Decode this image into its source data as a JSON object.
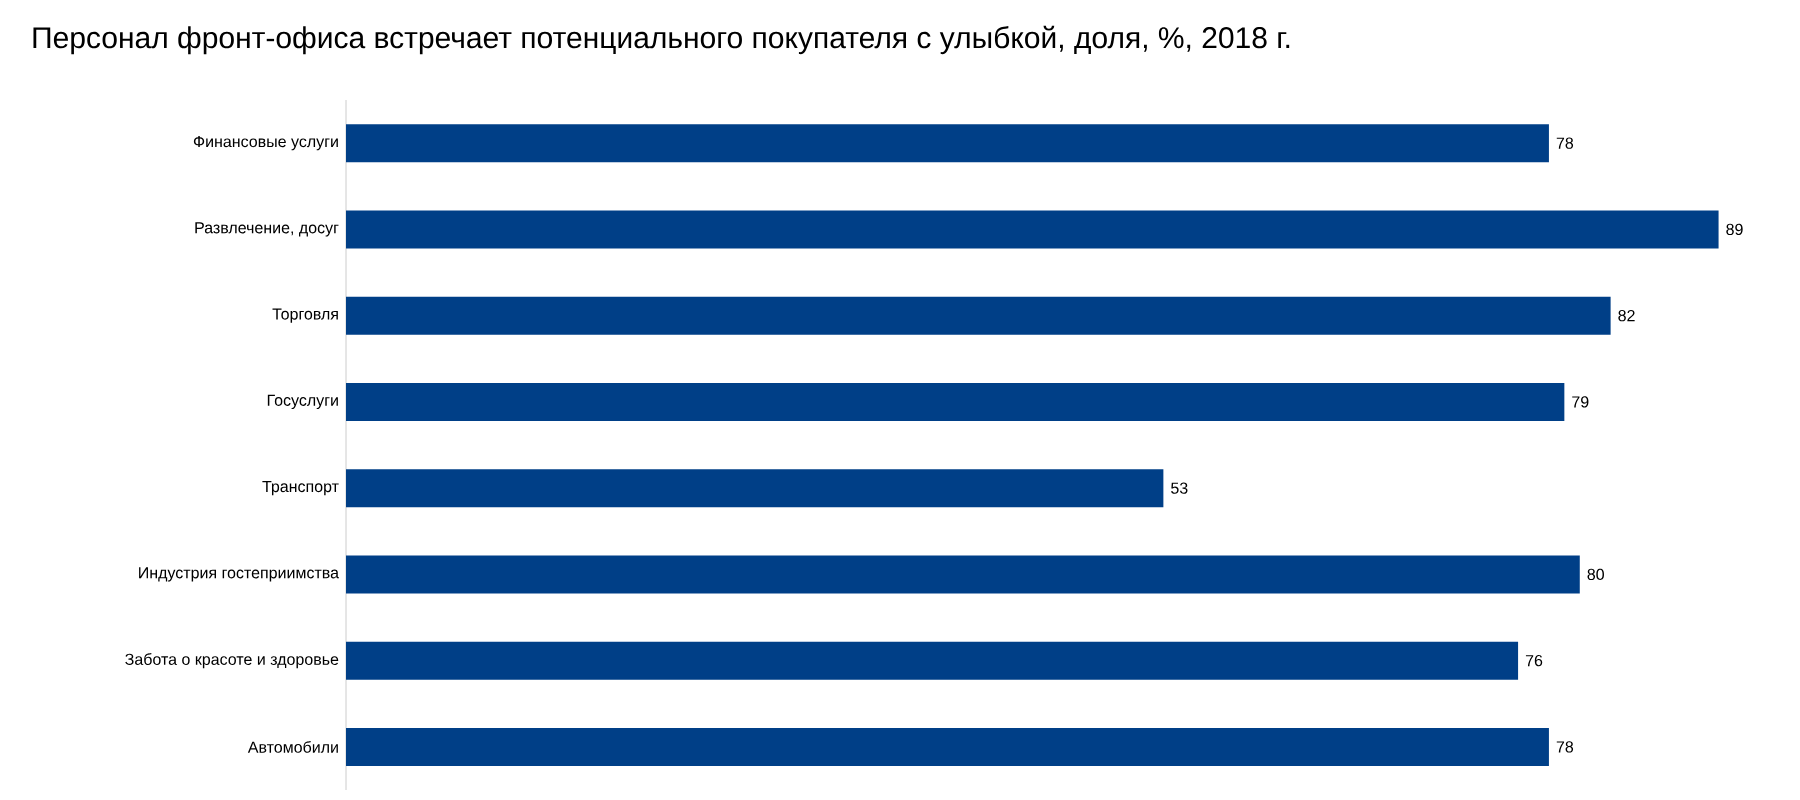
{
  "chart_data": {
    "type": "bar",
    "orientation": "horizontal",
    "title": "Персонал фронт-офиса встречает потенциального покупателя с улыбкой, доля, %, 2018 г.",
    "categories": [
      "Финансовые услуги",
      "Развлечение, досуг",
      "Торговля",
      "Госуслуги",
      "Транспорт",
      "Индустрия гостеприимства",
      "Забота о красоте и здоровье",
      "Автомобили"
    ],
    "values": [
      78,
      89,
      82,
      79,
      53,
      80,
      76,
      78
    ],
    "color": "#003f87",
    "data_labels": true
  }
}
